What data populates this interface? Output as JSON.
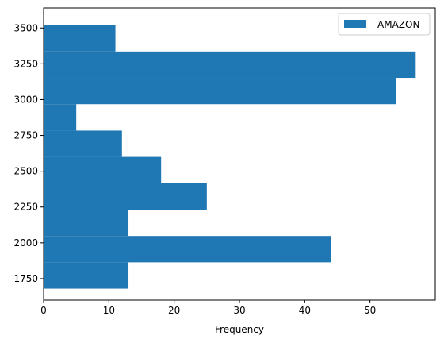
{
  "chart_data": {
    "type": "bar",
    "orientation": "horizontal",
    "xlabel": "Frequency",
    "ylabel": "",
    "title": "",
    "xlim": [
      0,
      60
    ],
    "ylim": [
      1600,
      3640
    ],
    "x_ticks": [
      0,
      10,
      20,
      30,
      40,
      50
    ],
    "y_ticks": [
      1750,
      2000,
      2250,
      2500,
      2750,
      3000,
      3250,
      3500
    ],
    "legend": {
      "placement": "top-right",
      "entries": [
        "AMAZON"
      ]
    },
    "grid": false,
    "series": [
      {
        "name": "AMAZON",
        "color": "#1f77b4",
        "bins": [
          {
            "from": 1680,
            "to": 1864,
            "value": 13
          },
          {
            "from": 1864,
            "to": 2048,
            "value": 44
          },
          {
            "from": 2048,
            "to": 2232,
            "value": 13
          },
          {
            "from": 2232,
            "to": 2416,
            "value": 25
          },
          {
            "from": 2416,
            "to": 2600,
            "value": 18
          },
          {
            "from": 2600,
            "to": 2784,
            "value": 12
          },
          {
            "from": 2784,
            "to": 2968,
            "value": 5
          },
          {
            "from": 2968,
            "to": 3152,
            "value": 54
          },
          {
            "from": 3152,
            "to": 3336,
            "value": 57
          },
          {
            "from": 3336,
            "to": 3520,
            "value": 11
          }
        ]
      }
    ]
  }
}
